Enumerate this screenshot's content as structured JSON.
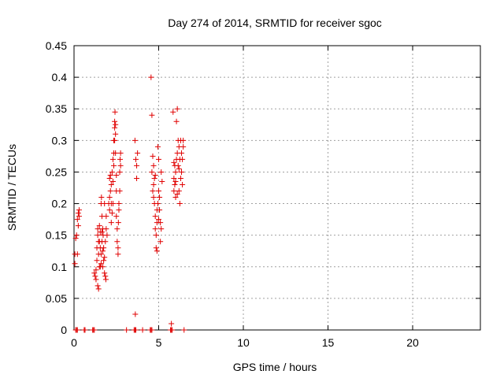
{
  "chart_data": {
    "type": "scatter",
    "title": "Day 274 of 2014, SRMTID for receiver sgoc",
    "xlabel": "GPS time / hours",
    "ylabel": "SRMTID / TECUs",
    "xlim": [
      0,
      24
    ],
    "ylim": [
      0,
      0.45
    ],
    "grid": true,
    "marker": "+",
    "color": "#e00000",
    "xticks": [
      0,
      5,
      10,
      15,
      20
    ],
    "xtick_labels": [
      "0",
      "5",
      "10",
      "15",
      "20"
    ],
    "yticks": [
      0,
      0.05,
      0.1,
      0.15,
      0.2,
      0.25,
      0.3,
      0.35,
      0.4,
      0.45
    ],
    "ytick_labels": [
      "0",
      "0.05",
      "0.1",
      "0.15",
      "0.2",
      "0.25",
      "0.3",
      "0.35",
      "0.4",
      "0.45"
    ],
    "series": [
      {
        "name": "SRMTID",
        "points": [
          [
            0.1,
            0.0
          ],
          [
            0.15,
            0.0
          ],
          [
            0.2,
            0.0
          ],
          [
            0.6,
            0.0
          ],
          [
            0.65,
            0.0
          ],
          [
            1.1,
            0.0
          ],
          [
            1.15,
            0.0
          ],
          [
            1.2,
            0.0
          ],
          [
            3.1,
            0.0
          ],
          [
            3.55,
            0.0
          ],
          [
            3.6,
            0.0
          ],
          [
            3.65,
            0.0
          ],
          [
            4.05,
            0.0
          ],
          [
            4.5,
            0.0
          ],
          [
            4.55,
            0.0
          ],
          [
            4.6,
            0.0
          ],
          [
            5.7,
            0.0
          ],
          [
            5.75,
            0.0
          ],
          [
            5.8,
            0.0
          ],
          [
            6.5,
            0.0
          ],
          [
            0.05,
            0.12
          ],
          [
            0.1,
            0.145
          ],
          [
            0.15,
            0.15
          ],
          [
            0.2,
            0.12
          ],
          [
            0.2,
            0.175
          ],
          [
            0.25,
            0.185
          ],
          [
            0.25,
            0.165
          ],
          [
            0.3,
            0.18
          ],
          [
            0.05,
            0.105
          ],
          [
            0.3,
            0.19
          ],
          [
            1.2,
            0.09
          ],
          [
            1.25,
            0.085
          ],
          [
            1.3,
            0.095
          ],
          [
            1.3,
            0.08
          ],
          [
            1.35,
            0.11
          ],
          [
            1.35,
            0.13
          ],
          [
            1.4,
            0.15
          ],
          [
            1.4,
            0.07
          ],
          [
            1.45,
            0.065
          ],
          [
            1.45,
            0.12
          ],
          [
            1.5,
            0.14
          ],
          [
            1.5,
            0.1
          ],
          [
            1.55,
            0.155
          ],
          [
            1.55,
            0.13
          ],
          [
            1.6,
            0.12
          ],
          [
            1.6,
            0.2
          ],
          [
            1.62,
            0.21
          ],
          [
            1.65,
            0.18
          ],
          [
            1.65,
            0.14
          ],
          [
            1.7,
            0.1
          ],
          [
            1.7,
            0.16
          ],
          [
            1.72,
            0.15
          ],
          [
            1.75,
            0.13
          ],
          [
            1.75,
            0.11
          ],
          [
            1.8,
            0.2
          ],
          [
            1.8,
            0.09
          ],
          [
            1.85,
            0.085
          ],
          [
            1.85,
            0.14
          ],
          [
            1.88,
            0.08
          ],
          [
            1.9,
            0.16
          ],
          [
            1.9,
            0.18
          ],
          [
            1.95,
            0.15
          ],
          [
            1.4,
            0.16
          ],
          [
            1.5,
            0.165
          ],
          [
            1.6,
            0.105
          ],
          [
            1.7,
            0.125
          ],
          [
            1.8,
            0.115
          ],
          [
            1.45,
            0.14
          ],
          [
            1.55,
            0.1
          ],
          [
            1.65,
            0.155
          ],
          [
            2.05,
            0.2
          ],
          [
            2.1,
            0.19
          ],
          [
            2.1,
            0.24
          ],
          [
            2.15,
            0.22
          ],
          [
            2.2,
            0.23
          ],
          [
            2.2,
            0.17
          ],
          [
            2.25,
            0.185
          ],
          [
            2.25,
            0.25
          ],
          [
            2.3,
            0.27
          ],
          [
            2.3,
            0.2
          ],
          [
            2.35,
            0.26
          ],
          [
            2.35,
            0.3
          ],
          [
            2.4,
            0.32
          ],
          [
            2.4,
            0.33
          ],
          [
            2.42,
            0.345
          ],
          [
            2.45,
            0.31
          ],
          [
            2.45,
            0.28
          ],
          [
            2.5,
            0.22
          ],
          [
            2.5,
            0.18
          ],
          [
            2.55,
            0.16
          ],
          [
            2.55,
            0.14
          ],
          [
            2.6,
            0.12
          ],
          [
            2.6,
            0.13
          ],
          [
            2.62,
            0.17
          ],
          [
            2.65,
            0.19
          ],
          [
            2.65,
            0.2
          ],
          [
            2.7,
            0.22
          ],
          [
            2.7,
            0.25
          ],
          [
            2.72,
            0.27
          ],
          [
            2.75,
            0.28
          ],
          [
            2.75,
            0.26
          ],
          [
            2.1,
            0.21
          ],
          [
            2.2,
            0.2
          ],
          [
            2.3,
            0.235
          ],
          [
            2.4,
            0.3
          ],
          [
            2.5,
            0.245
          ],
          [
            2.15,
            0.245
          ],
          [
            2.35,
            0.28
          ],
          [
            2.45,
            0.325
          ],
          [
            3.6,
            0.3
          ],
          [
            3.65,
            0.27
          ],
          [
            3.7,
            0.26
          ],
          [
            3.7,
            0.24
          ],
          [
            3.75,
            0.28
          ],
          [
            3.62,
            0.025
          ],
          [
            4.55,
            0.4
          ],
          [
            4.6,
            0.34
          ],
          [
            4.6,
            0.25
          ],
          [
            4.65,
            0.22
          ],
          [
            4.7,
            0.21
          ],
          [
            4.7,
            0.23
          ],
          [
            4.75,
            0.2
          ],
          [
            4.75,
            0.24
          ],
          [
            4.8,
            0.18
          ],
          [
            4.8,
            0.16
          ],
          [
            4.85,
            0.13
          ],
          [
            4.85,
            0.15
          ],
          [
            4.9,
            0.17
          ],
          [
            4.9,
            0.19
          ],
          [
            4.95,
            0.2
          ],
          [
            4.95,
            0.29
          ],
          [
            5.0,
            0.27
          ],
          [
            5.0,
            0.22
          ],
          [
            5.05,
            0.19
          ],
          [
            5.05,
            0.21
          ],
          [
            5.1,
            0.17
          ],
          [
            5.1,
            0.14
          ],
          [
            5.15,
            0.16
          ],
          [
            5.15,
            0.25
          ],
          [
            5.2,
            0.235
          ],
          [
            4.7,
            0.26
          ],
          [
            4.8,
            0.245
          ],
          [
            4.9,
            0.125
          ],
          [
            5.0,
            0.175
          ],
          [
            4.65,
            0.275
          ],
          [
            5.75,
            0.01
          ],
          [
            5.85,
            0.345
          ],
          [
            5.9,
            0.24
          ],
          [
            5.9,
            0.22
          ],
          [
            5.95,
            0.23
          ],
          [
            5.95,
            0.26
          ],
          [
            6.0,
            0.21
          ],
          [
            6.0,
            0.25
          ],
          [
            6.05,
            0.27
          ],
          [
            6.05,
            0.33
          ],
          [
            6.1,
            0.35
          ],
          [
            6.1,
            0.28
          ],
          [
            6.15,
            0.26
          ],
          [
            6.15,
            0.3
          ],
          [
            6.2,
            0.22
          ],
          [
            6.2,
            0.29
          ],
          [
            6.25,
            0.2
          ],
          [
            6.25,
            0.27
          ],
          [
            6.3,
            0.24
          ],
          [
            6.3,
            0.3
          ],
          [
            6.35,
            0.28
          ],
          [
            6.35,
            0.25
          ],
          [
            6.4,
            0.23
          ],
          [
            6.4,
            0.27
          ],
          [
            6.45,
            0.29
          ],
          [
            6.45,
            0.3
          ],
          [
            5.9,
            0.265
          ],
          [
            6.0,
            0.235
          ],
          [
            6.1,
            0.215
          ],
          [
            6.2,
            0.255
          ]
        ]
      }
    ]
  }
}
